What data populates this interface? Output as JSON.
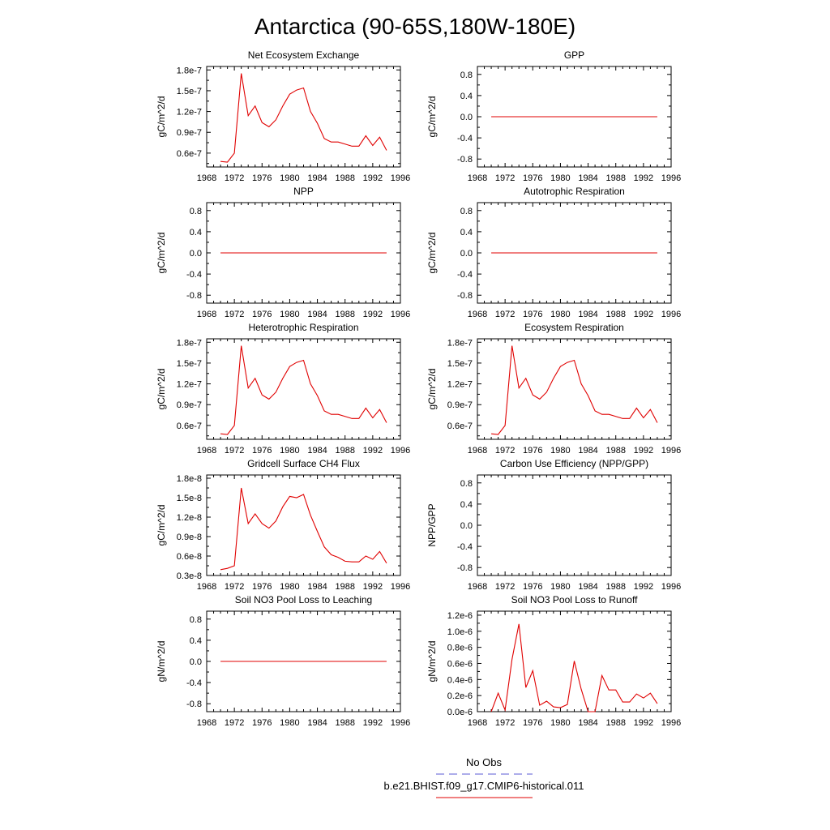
{
  "title": "Antarctica (90-65S,180W-180E)",
  "legend": [
    {
      "label": "No Obs",
      "color": "#5b5bd6",
      "style": "dashed"
    },
    {
      "label": "b.e21.BHIST.f09_g17.CMIP6-historical.011",
      "color": "#e00000",
      "style": "solid"
    }
  ],
  "line_color": "#e00000",
  "x_ticks": [
    1968,
    1972,
    1976,
    1980,
    1984,
    1988,
    1992,
    1996
  ],
  "chart_data": [
    {
      "type": "line",
      "title": "Net Ecosystem Exchange",
      "ylabel": "gC/m^2/d",
      "xlim": [
        1968,
        1996
      ],
      "ylim": [
        4e-08,
        1.85e-07
      ],
      "yticks": [
        6e-08,
        9e-08,
        1.2e-07,
        1.5e-07,
        1.8e-07
      ],
      "ytick_labels": [
        "0.6e-7",
        "0.9e-7",
        "1.2e-7",
        "1.5e-7",
        "1.8e-7"
      ],
      "x": [
        1970,
        1971,
        1972,
        1973,
        1974,
        1975,
        1976,
        1977,
        1978,
        1979,
        1980,
        1981,
        1982,
        1983,
        1984,
        1985,
        1986,
        1987,
        1988,
        1989,
        1990,
        1991,
        1992,
        1993,
        1994
      ],
      "y": [
        4.8e-08,
        4.7e-08,
        6e-08,
        1.75e-07,
        1.14e-07,
        1.28e-07,
        1.04e-07,
        9.8e-08,
        1.08e-07,
        1.28e-07,
        1.45e-07,
        1.51e-07,
        1.54e-07,
        1.2e-07,
        1.03e-07,
        8.1e-08,
        7.6e-08,
        7.6e-08,
        7.3e-08,
        7e-08,
        7e-08,
        8.5e-08,
        7.1e-08,
        8.3e-08,
        6.4e-08
      ]
    },
    {
      "type": "line",
      "title": "GPP",
      "ylabel": "gC/m^2/d",
      "xlim": [
        1968,
        1996
      ],
      "ylim": [
        -0.95,
        0.95
      ],
      "yticks": [
        -0.8,
        -0.4,
        0.0,
        0.4,
        0.8
      ],
      "ytick_labels": [
        "-0.8",
        "-0.4",
        "0.0",
        "0.4",
        "0.8"
      ],
      "x": [
        1970,
        1994
      ],
      "y": [
        0.0,
        0.0
      ]
    },
    {
      "type": "line",
      "title": "NPP",
      "ylabel": "gC/m^2/d",
      "xlim": [
        1968,
        1996
      ],
      "ylim": [
        -0.95,
        0.95
      ],
      "yticks": [
        -0.8,
        -0.4,
        0.0,
        0.4,
        0.8
      ],
      "ytick_labels": [
        "-0.8",
        "-0.4",
        "0.0",
        "0.4",
        "0.8"
      ],
      "x": [
        1970,
        1994
      ],
      "y": [
        0.0,
        0.0
      ]
    },
    {
      "type": "line",
      "title": "Autotrophic Respiration",
      "ylabel": "gC/m^2/d",
      "xlim": [
        1968,
        1996
      ],
      "ylim": [
        -0.95,
        0.95
      ],
      "yticks": [
        -0.8,
        -0.4,
        0.0,
        0.4,
        0.8
      ],
      "ytick_labels": [
        "-0.8",
        "-0.4",
        "0.0",
        "0.4",
        "0.8"
      ],
      "x": [
        1970,
        1994
      ],
      "y": [
        0.0,
        0.0
      ]
    },
    {
      "type": "line",
      "title": "Heterotrophic Respiration",
      "ylabel": "gC/m^2/d",
      "xlim": [
        1968,
        1996
      ],
      "ylim": [
        4e-08,
        1.85e-07
      ],
      "yticks": [
        6e-08,
        9e-08,
        1.2e-07,
        1.5e-07,
        1.8e-07
      ],
      "ytick_labels": [
        "0.6e-7",
        "0.9e-7",
        "1.2e-7",
        "1.5e-7",
        "1.8e-7"
      ],
      "x": [
        1970,
        1971,
        1972,
        1973,
        1974,
        1975,
        1976,
        1977,
        1978,
        1979,
        1980,
        1981,
        1982,
        1983,
        1984,
        1985,
        1986,
        1987,
        1988,
        1989,
        1990,
        1991,
        1992,
        1993,
        1994
      ],
      "y": [
        4.8e-08,
        4.7e-08,
        6e-08,
        1.75e-07,
        1.14e-07,
        1.28e-07,
        1.04e-07,
        9.8e-08,
        1.08e-07,
        1.28e-07,
        1.45e-07,
        1.51e-07,
        1.54e-07,
        1.2e-07,
        1.03e-07,
        8.1e-08,
        7.6e-08,
        7.6e-08,
        7.3e-08,
        7e-08,
        7e-08,
        8.5e-08,
        7.1e-08,
        8.3e-08,
        6.4e-08
      ]
    },
    {
      "type": "line",
      "title": "Ecosystem Respiration",
      "ylabel": "gC/m^2/d",
      "xlim": [
        1968,
        1996
      ],
      "ylim": [
        4e-08,
        1.85e-07
      ],
      "yticks": [
        6e-08,
        9e-08,
        1.2e-07,
        1.5e-07,
        1.8e-07
      ],
      "ytick_labels": [
        "0.6e-7",
        "0.9e-7",
        "1.2e-7",
        "1.5e-7",
        "1.8e-7"
      ],
      "x": [
        1970,
        1971,
        1972,
        1973,
        1974,
        1975,
        1976,
        1977,
        1978,
        1979,
        1980,
        1981,
        1982,
        1983,
        1984,
        1985,
        1986,
        1987,
        1988,
        1989,
        1990,
        1991,
        1992,
        1993,
        1994
      ],
      "y": [
        4.8e-08,
        4.7e-08,
        6e-08,
        1.75e-07,
        1.14e-07,
        1.28e-07,
        1.04e-07,
        9.8e-08,
        1.08e-07,
        1.28e-07,
        1.45e-07,
        1.51e-07,
        1.54e-07,
        1.2e-07,
        1.03e-07,
        8.1e-08,
        7.6e-08,
        7.6e-08,
        7.3e-08,
        7e-08,
        7e-08,
        8.5e-08,
        7.1e-08,
        8.3e-08,
        6.4e-08
      ]
    },
    {
      "type": "line",
      "title": "Gridcell Surface CH4 Flux",
      "ylabel": "gC/m^2/d",
      "xlim": [
        1968,
        1996
      ],
      "ylim": [
        3e-09,
        1.85e-08
      ],
      "yticks": [
        3e-09,
        6e-09,
        9e-09,
        1.2e-08,
        1.5e-08,
        1.8e-08
      ],
      "ytick_labels": [
        "0.3e-8",
        "0.6e-8",
        "0.9e-8",
        "1.2e-8",
        "1.5e-8",
        "1.8e-8"
      ],
      "x": [
        1970,
        1971,
        1972,
        1973,
        1974,
        1975,
        1976,
        1977,
        1978,
        1979,
        1980,
        1981,
        1982,
        1983,
        1984,
        1985,
        1986,
        1987,
        1988,
        1989,
        1990,
        1991,
        1992,
        1993,
        1994
      ],
      "y": [
        3.9e-09,
        4.1e-09,
        4.5e-09,
        1.65e-08,
        1.1e-08,
        1.25e-08,
        1.1e-08,
        1.03e-08,
        1.14e-08,
        1.36e-08,
        1.52e-08,
        1.5e-08,
        1.55e-08,
        1.23e-08,
        9.8e-09,
        7.4e-09,
        6.2e-09,
        5.8e-09,
        5.2e-09,
        5.1e-09,
        5.1e-09,
        6e-09,
        5.5e-09,
        6.7e-09,
        4.9e-09
      ]
    },
    {
      "type": "line",
      "title": "Carbon Use Efficiency (NPP/GPP)",
      "ylabel": "NPP/GPP",
      "xlim": [
        1968,
        1996
      ],
      "ylim": [
        -0.95,
        0.95
      ],
      "yticks": [
        -0.8,
        -0.4,
        0.0,
        0.4,
        0.8
      ],
      "ytick_labels": [
        "-0.8",
        "-0.4",
        "0.0",
        "0.4",
        "0.8"
      ],
      "x": [],
      "y": []
    },
    {
      "type": "line",
      "title": "Soil NO3 Pool Loss to Leaching",
      "ylabel": "gN/m^2/d",
      "xlim": [
        1968,
        1996
      ],
      "ylim": [
        -0.95,
        0.95
      ],
      "yticks": [
        -0.8,
        -0.4,
        0.0,
        0.4,
        0.8
      ],
      "ytick_labels": [
        "-0.8",
        "-0.4",
        "0.0",
        "0.4",
        "0.8"
      ],
      "x": [
        1970,
        1994
      ],
      "y": [
        0.0,
        0.0
      ]
    },
    {
      "type": "line",
      "title": "Soil NO3 Pool Loss to Runoff",
      "ylabel": "gN/m^2/d",
      "xlim": [
        1968,
        1996
      ],
      "ylim": [
        0.0,
        1.25e-06
      ],
      "yticks": [
        0.0,
        2e-07,
        4e-07,
        6e-07,
        8e-07,
        1e-06,
        1.2e-06
      ],
      "ytick_labels": [
        "0.0e-6",
        "0.2e-6",
        "0.4e-6",
        "0.6e-6",
        "0.8e-6",
        "1.0e-6",
        "1.2e-6"
      ],
      "x": [
        1970,
        1971,
        1972,
        1973,
        1974,
        1975,
        1976,
        1977,
        1978,
        1979,
        1980,
        1981,
        1982,
        1983,
        1984,
        1985,
        1986,
        1987,
        1988,
        1989,
        1990,
        1991,
        1992,
        1993,
        1994
      ],
      "y": [
        0.0,
        2.3e-07,
        2e-08,
        6.5e-07,
        1.09e-06,
        3e-07,
        5.1e-07,
        8e-08,
        1.3e-07,
        6e-08,
        5e-08,
        9e-08,
        6.3e-07,
        2.8e-07,
        0.0,
        0.0,
        4.5e-07,
        2.7e-07,
        2.7e-07,
        1.2e-07,
        1.2e-07,
        2.2e-07,
        1.7e-07,
        2.3e-07,
        1e-07
      ]
    }
  ]
}
